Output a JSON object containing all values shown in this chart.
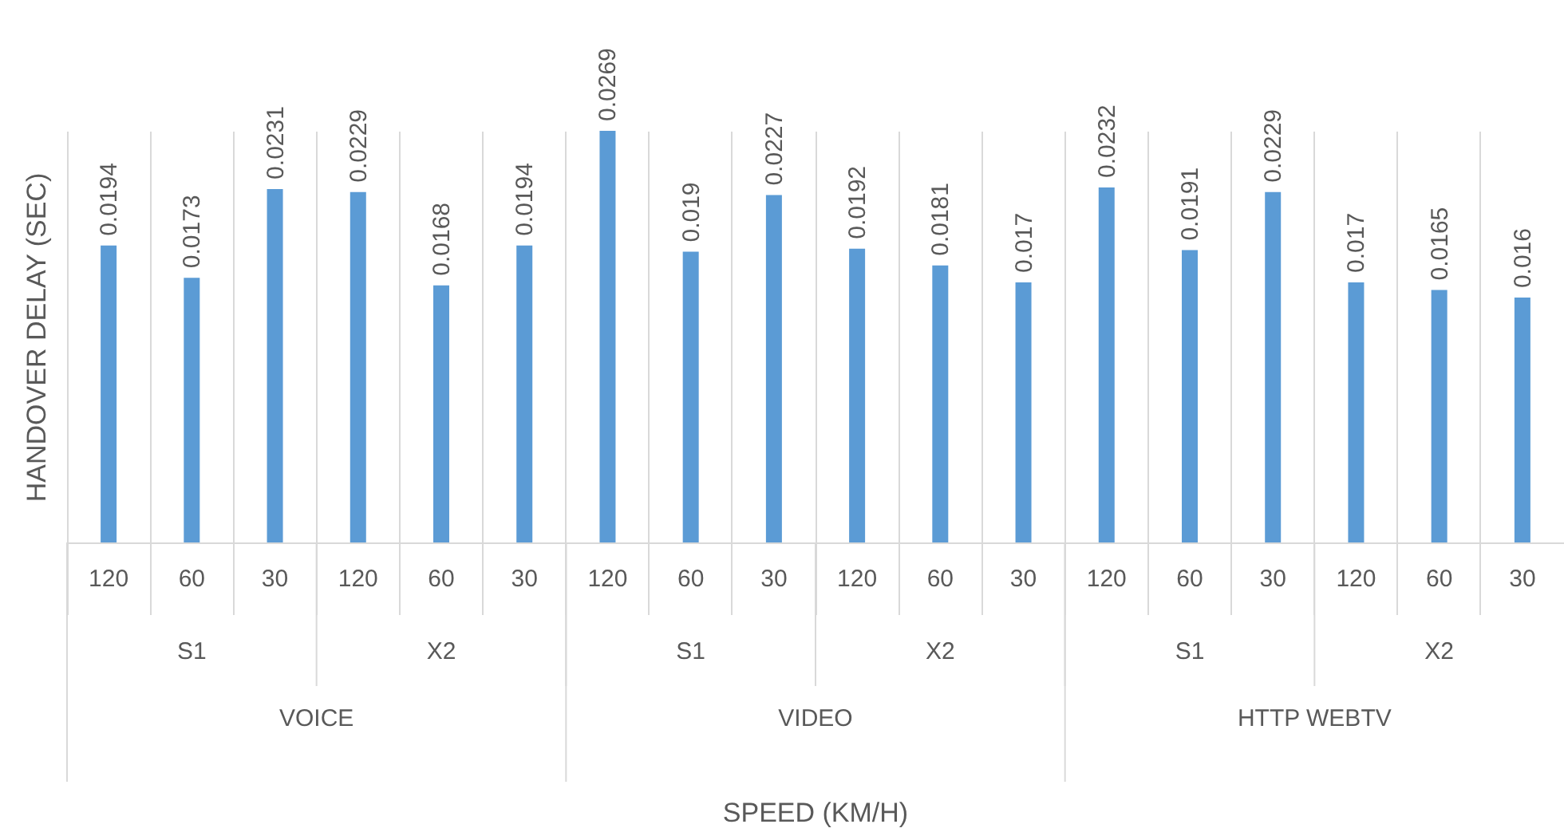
{
  "chart_data": {
    "type": "bar",
    "ylabel": "HANDOVER DELAY (SEC)",
    "categories": [
      "120",
      "60",
      "30",
      "120",
      "60",
      "30",
      "120",
      "60",
      "30",
      "120",
      "60",
      "30",
      "120",
      "60",
      "30",
      "120",
      "60",
      "30"
    ],
    "values": [
      0.0194,
      0.0173,
      0.0231,
      0.0229,
      0.0168,
      0.0194,
      0.0269,
      0.019,
      0.0227,
      0.0192,
      0.0181,
      0.017,
      0.0232,
      0.0191,
      0.0229,
      0.017,
      0.0165,
      0.016
    ],
    "color": "#5b9bd5",
    "data_labels": true,
    "annotations": [
      "S1",
      "X2",
      "S1",
      "X2",
      "S1",
      "X2",
      "VOICE",
      "VIDEO",
      "HTTP WEBTV",
      "SPEED (KM/H)"
    ]
  }
}
